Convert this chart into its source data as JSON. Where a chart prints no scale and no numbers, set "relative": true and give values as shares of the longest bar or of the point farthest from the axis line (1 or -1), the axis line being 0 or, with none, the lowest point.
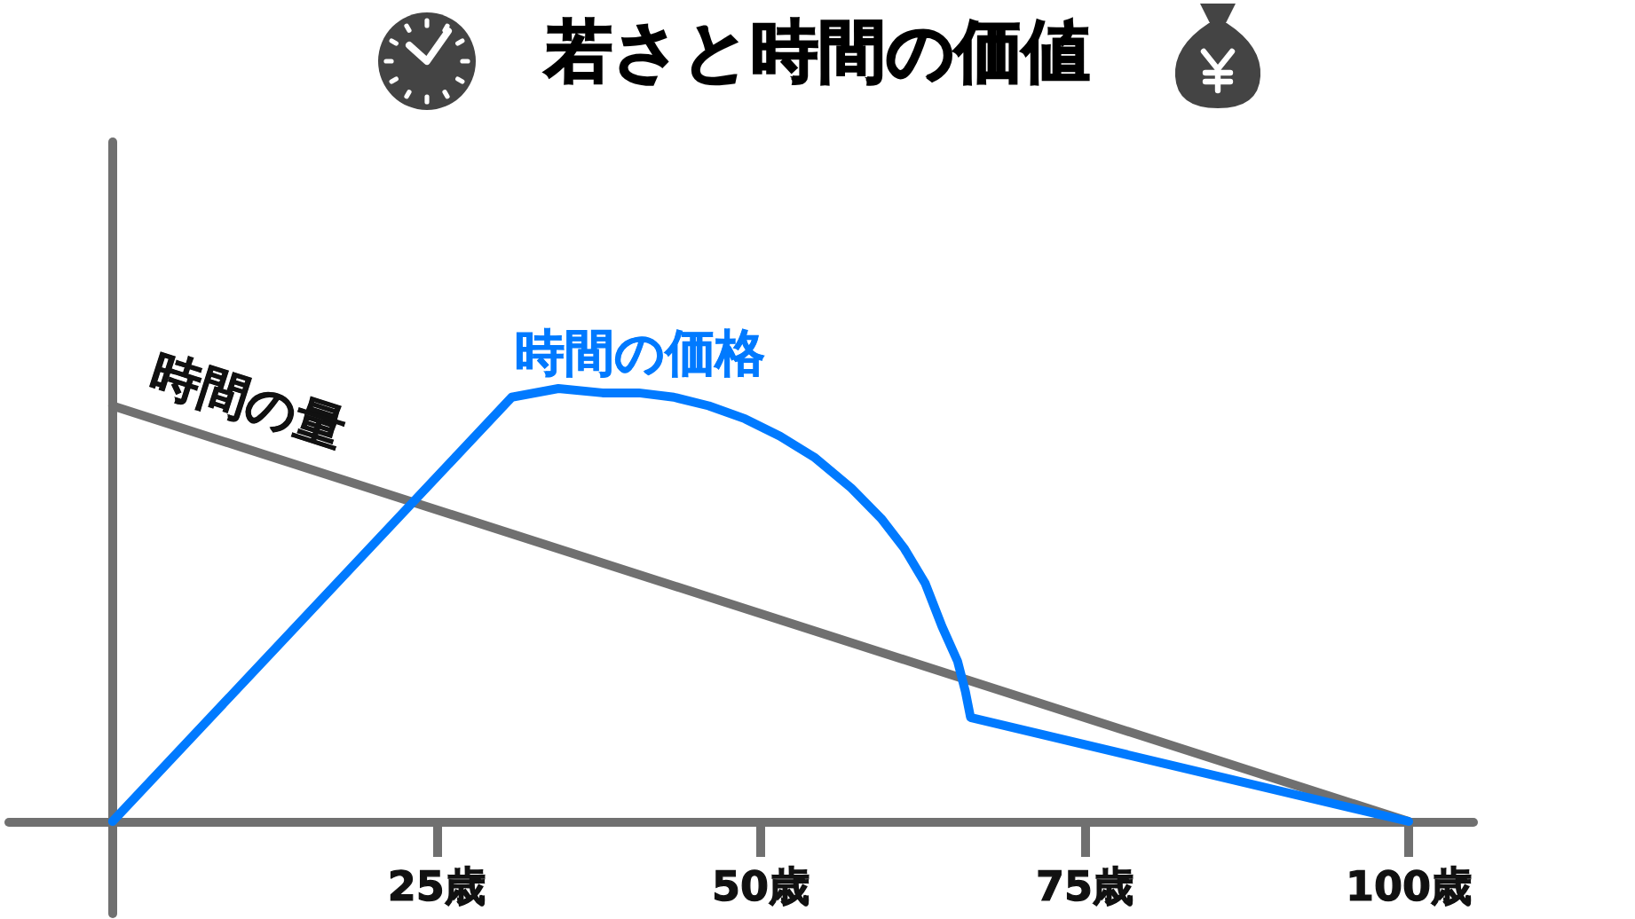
{
  "chart_data": {
    "type": "line",
    "title": "若さと時間の価値",
    "relative": true,
    "xlim": [
      -8,
      105
    ],
    "xticks": [
      {
        "value": 25,
        "label": "25歳"
      },
      {
        "value": 50,
        "label": "50歳"
      },
      {
        "value": 75,
        "label": "75歳"
      },
      {
        "value": 100,
        "label": "100歳"
      }
    ],
    "series": [
      {
        "name": "時間の量",
        "color": "#707070",
        "x": [
          0,
          100
        ],
        "values": [
          0.96,
          0
        ]
      },
      {
        "name": "時間の価格",
        "color": "#007aff",
        "x": [
          0,
          30.8,
          34.4,
          37.8,
          40.6,
          43.3,
          46,
          48.8,
          51.5,
          54.2,
          57,
          59.3,
          61.1,
          62.7,
          64,
          65.2,
          65.8,
          66.2,
          100
        ],
        "values": [
          0,
          0.98,
          1,
          0.99,
          0.99,
          0.98,
          0.96,
          0.93,
          0.89,
          0.84,
          0.77,
          0.7,
          0.63,
          0.55,
          0.45,
          0.37,
          0.3,
          0.24,
          0
        ]
      }
    ],
    "grid": false,
    "legend": false,
    "marker": "none",
    "line_style": "solid"
  }
}
